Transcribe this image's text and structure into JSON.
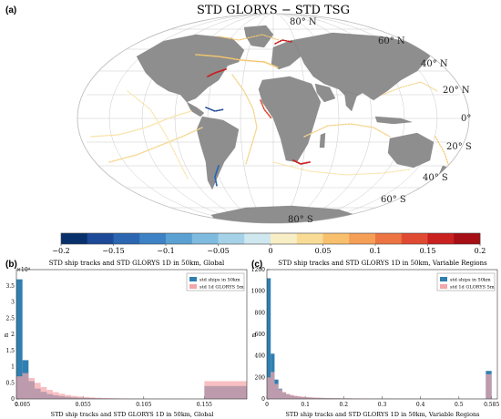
{
  "map_panel": {
    "panel_label": "(a)",
    "title": "STD GLORYS − STD TSG",
    "lat_labels": [
      {
        "text": "80° N"
      },
      {
        "text": "60° N"
      },
      {
        "text": "40° N"
      },
      {
        "text": "20° N"
      },
      {
        "text": "0°"
      },
      {
        "text": "20° S"
      },
      {
        "text": "40° S"
      },
      {
        "text": "60° S"
      },
      {
        "text": "80° S"
      }
    ],
    "colorbar": {
      "range": [
        -0.2,
        0.2
      ],
      "ticks": [
        -0.2,
        -0.15,
        -0.1,
        -0.05,
        0,
        0.05,
        0.1,
        0.15,
        0.2
      ],
      "tick_labels": [
        "−0.2",
        "−0.15",
        "−0.1",
        "−0.05",
        "0",
        "0.05",
        "0.1",
        "0.15",
        "0.2"
      ],
      "colors": [
        "#08306b",
        "#1c4a98",
        "#2c66b2",
        "#3d82c4",
        "#5aa0d2",
        "#7fbadf",
        "#a6d2e8",
        "#cfe7ef",
        "#f8eec6",
        "#f8dc96",
        "#f8c06e",
        "#f49e56",
        "#ec7442",
        "#e04a32",
        "#c92020",
        "#a50f15"
      ]
    }
  },
  "chart_data": [
    {
      "type": "bar",
      "panel_label": "(b)",
      "title": "STD ship tracks and STD GLORYS 1D in 50km, Global",
      "xlabel": "STD ship tracks and STD GLORYS 1D in 50km, Global",
      "ylabel": "n",
      "y_exponent": "×10⁴",
      "xlim": [
        0,
        0.19
      ],
      "ylim": [
        0,
        4
      ],
      "xticks": [
        0,
        0.005,
        0.055,
        0.105,
        0.155
      ],
      "xtick_labels": [
        "0",
        "0.005",
        "0.055",
        "0.105",
        "0.155"
      ],
      "yticks": [
        0,
        0.5,
        1,
        1.5,
        2,
        2.5,
        3,
        3.5
      ],
      "ytick_labels": [
        "0",
        "0.5",
        "1",
        "1.5",
        "2",
        "2.5",
        "3",
        "3.5"
      ],
      "legend_position": "top-right",
      "bin_starts": [
        0,
        0.005,
        0.01,
        0.015,
        0.02,
        0.025,
        0.03,
        0.035,
        0.04,
        0.045,
        0.05,
        0.055,
        0.06,
        0.065,
        0.07,
        0.075,
        0.08,
        0.085,
        0.09,
        0.095,
        0.1,
        0.105,
        0.11,
        0.115,
        0.12,
        0.125,
        0.13,
        0.135,
        0.14,
        0.145,
        0.15,
        0.155
      ],
      "bin_widths": [
        0.005,
        0.005,
        0.005,
        0.005,
        0.005,
        0.005,
        0.005,
        0.005,
        0.005,
        0.005,
        0.005,
        0.005,
        0.005,
        0.005,
        0.005,
        0.005,
        0.005,
        0.005,
        0.005,
        0.005,
        0.005,
        0.005,
        0.005,
        0.005,
        0.005,
        0.005,
        0.005,
        0.005,
        0.005,
        0.005,
        0.005,
        0.035
      ],
      "series": [
        {
          "name": "std ships in 50km",
          "color": "#2f7fb0",
          "values": [
            3.7,
            1.2,
            0.55,
            0.32,
            0.22,
            0.15,
            0.11,
            0.085,
            0.065,
            0.05,
            0.04,
            0.032,
            0.026,
            0.021,
            0.017,
            0.014,
            0.012,
            0.01,
            0.008,
            0.007,
            0.006,
            0.005,
            0.004,
            0.004,
            0.003,
            0.003,
            0.003,
            0.002,
            0.002,
            0.002,
            0.002,
            0.4
          ]
        },
        {
          "name": "std 1d GLORYS 5m",
          "color": "#f4a6ab",
          "values": [
            0.7,
            0.8,
            0.65,
            0.5,
            0.37,
            0.28,
            0.21,
            0.16,
            0.12,
            0.095,
            0.075,
            0.06,
            0.048,
            0.038,
            0.03,
            0.025,
            0.02,
            0.016,
            0.013,
            0.011,
            0.009,
            0.008,
            0.007,
            0.006,
            0.005,
            0.004,
            0.004,
            0.003,
            0.003,
            0.003,
            0.002,
            0.55
          ]
        }
      ]
    },
    {
      "type": "bar",
      "panel_label": "(c)",
      "title": "STD ship tracks and STD GLORYS 1D in 50km, Variable Regions",
      "xlabel": "STD ship tracks and STD GLORYS 1D in 50km, Variable Regions",
      "ylabel": "n",
      "xlim": [
        0,
        0.6
      ],
      "ylim": [
        0,
        1200
      ],
      "xticks": [
        0,
        0.1,
        0.2,
        0.3,
        0.4,
        0.5,
        0.585
      ],
      "xtick_labels": [
        "0",
        "0.1",
        "0.2",
        "0.3",
        "0.4",
        "0.5",
        "0.585"
      ],
      "yticks": [
        0,
        200,
        400,
        600,
        800,
        1000,
        1200
      ],
      "ytick_labels": [
        "0",
        "200",
        "400",
        "600",
        "800",
        "1000",
        "1200"
      ],
      "legend_position": "top-right",
      "bin_starts": [
        0,
        0.01,
        0.02,
        0.03,
        0.04,
        0.05,
        0.06,
        0.07,
        0.08,
        0.09,
        0.1,
        0.11,
        0.12,
        0.13,
        0.14,
        0.15,
        0.16,
        0.17,
        0.18,
        0.19,
        0.2,
        0.22,
        0.24,
        0.26,
        0.28,
        0.3,
        0.33,
        0.36,
        0.4,
        0.44,
        0.48,
        0.52,
        0.57
      ],
      "bin_widths": [
        0.01,
        0.01,
        0.01,
        0.01,
        0.01,
        0.01,
        0.01,
        0.01,
        0.01,
        0.01,
        0.01,
        0.01,
        0.01,
        0.01,
        0.01,
        0.01,
        0.01,
        0.01,
        0.01,
        0.01,
        0.02,
        0.02,
        0.02,
        0.02,
        0.02,
        0.03,
        0.03,
        0.04,
        0.04,
        0.04,
        0.04,
        0.05,
        0.015
      ],
      "series": [
        {
          "name": "std ships in 50km",
          "color": "#2f7fb0",
          "values": [
            1120,
            420,
            180,
            95,
            60,
            42,
            32,
            26,
            21,
            18,
            15,
            13,
            11,
            10,
            9,
            8,
            7,
            6,
            6,
            5,
            5,
            4,
            4,
            3,
            3,
            3,
            2,
            2,
            2,
            2,
            1,
            1,
            260
          ]
        },
        {
          "name": "std 1d GLORYS 5m",
          "color": "#f4a6ab",
          "values": [
            200,
            250,
            140,
            90,
            65,
            48,
            38,
            30,
            25,
            21,
            18,
            15,
            13,
            12,
            10,
            9,
            8,
            7,
            7,
            6,
            6,
            5,
            4,
            4,
            3,
            3,
            3,
            2,
            2,
            2,
            2,
            1,
            230
          ]
        }
      ]
    }
  ]
}
